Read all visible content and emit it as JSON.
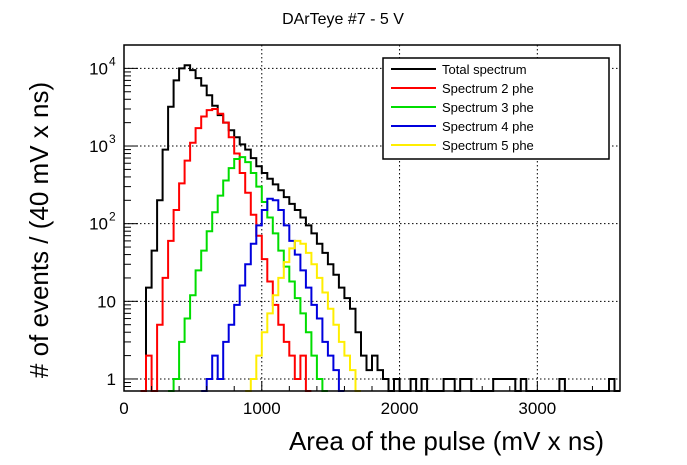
{
  "chart_data": {
    "type": "histogram",
    "title": "DArTeye #7 - 5 V",
    "xlabel": "Area of the pulse (mV x ns)",
    "ylabel": "# of events / (40 mV x ns)",
    "xlim": [
      0,
      3600
    ],
    "ylim": [
      0.7,
      20000
    ],
    "yscale": "log",
    "bin_width": 40,
    "grid": true,
    "x_ticks": [
      {
        "value": 0,
        "label": "0"
      },
      {
        "value": 1000,
        "label": "1000"
      },
      {
        "value": 2000,
        "label": "2000"
      },
      {
        "value": 3000,
        "label": "3000"
      }
    ],
    "y_ticks": [
      {
        "value": 1,
        "label": "1"
      },
      {
        "value": 10,
        "label": "10"
      },
      {
        "value": 100,
        "label": "10",
        "exp": "2"
      },
      {
        "value": 1000,
        "label": "10",
        "exp": "3"
      },
      {
        "value": 10000,
        "label": "10",
        "exp": "4"
      }
    ],
    "legend_position": "top-right",
    "series": [
      {
        "name": "Total spectrum",
        "color": "#000000",
        "bins": [
          [
            120,
            0.7
          ],
          [
            160,
            15
          ],
          [
            200,
            45
          ],
          [
            240,
            200
          ],
          [
            280,
            900
          ],
          [
            320,
            3200
          ],
          [
            360,
            7000
          ],
          [
            400,
            10000
          ],
          [
            440,
            11000
          ],
          [
            480,
            9500
          ],
          [
            520,
            7500
          ],
          [
            560,
            6000
          ],
          [
            600,
            4500
          ],
          [
            640,
            3300
          ],
          [
            680,
            2500
          ],
          [
            720,
            2000
          ],
          [
            760,
            1600
          ],
          [
            800,
            1300
          ],
          [
            840,
            1050
          ],
          [
            880,
            900
          ],
          [
            920,
            700
          ],
          [
            960,
            550
          ],
          [
            1000,
            450
          ],
          [
            1040,
            380
          ],
          [
            1080,
            320
          ],
          [
            1120,
            270
          ],
          [
            1160,
            220
          ],
          [
            1200,
            180
          ],
          [
            1240,
            150
          ],
          [
            1280,
            120
          ],
          [
            1320,
            95
          ],
          [
            1360,
            75
          ],
          [
            1400,
            55
          ],
          [
            1440,
            42
          ],
          [
            1480,
            30
          ],
          [
            1520,
            22
          ],
          [
            1560,
            15
          ],
          [
            1600,
            11
          ],
          [
            1640,
            8
          ],
          [
            1680,
            4
          ],
          [
            1720,
            2
          ],
          [
            1760,
            1.3
          ],
          [
            1800,
            2
          ],
          [
            1840,
            1.3
          ],
          [
            1880,
            1
          ],
          [
            1920,
            0.7
          ],
          [
            1960,
            1
          ],
          [
            2000,
            0.7
          ],
          [
            2040,
            0.7
          ],
          [
            2080,
            1
          ],
          [
            2120,
            0.7
          ],
          [
            2160,
            1
          ],
          [
            2200,
            0.7
          ],
          [
            2240,
            0.7
          ],
          [
            2280,
            0.7
          ],
          [
            2320,
            1
          ],
          [
            2360,
            1
          ],
          [
            2400,
            0.7
          ],
          [
            2440,
            1
          ],
          [
            2480,
            1
          ],
          [
            2520,
            0.7
          ],
          [
            2560,
            0.7
          ],
          [
            2600,
            0.7
          ],
          [
            2640,
            0.7
          ],
          [
            2680,
            1
          ],
          [
            2720,
            1
          ],
          [
            2760,
            1
          ],
          [
            2800,
            1
          ],
          [
            2840,
            0.7
          ],
          [
            2880,
            1
          ],
          [
            2920,
            0.7
          ],
          [
            2960,
            0.7
          ],
          [
            3000,
            0.7
          ],
          [
            3040,
            0.7
          ],
          [
            3080,
            0.7
          ],
          [
            3120,
            0.7
          ],
          [
            3160,
            1
          ],
          [
            3200,
            0.7
          ],
          [
            3240,
            0.7
          ],
          [
            3280,
            0.7
          ],
          [
            3320,
            0.7
          ],
          [
            3360,
            0.7
          ],
          [
            3400,
            0.7
          ],
          [
            3440,
            0.7
          ],
          [
            3480,
            0.7
          ],
          [
            3520,
            1
          ],
          [
            3560,
            0.7
          ]
        ]
      },
      {
        "name": "Spectrum 2 phe",
        "color": "#ff0000",
        "bins": [
          [
            120,
            0.7
          ],
          [
            160,
            2
          ],
          [
            200,
            0.7
          ],
          [
            240,
            5
          ],
          [
            280,
            20
          ],
          [
            320,
            60
          ],
          [
            360,
            150
          ],
          [
            400,
            330
          ],
          [
            440,
            650
          ],
          [
            480,
            1100
          ],
          [
            520,
            1700
          ],
          [
            560,
            2400
          ],
          [
            600,
            2900
          ],
          [
            640,
            3000
          ],
          [
            680,
            2600
          ],
          [
            720,
            2000
          ],
          [
            760,
            1300
          ],
          [
            800,
            800
          ],
          [
            840,
            450
          ],
          [
            880,
            250
          ],
          [
            920,
            130
          ],
          [
            960,
            70
          ],
          [
            1000,
            35
          ],
          [
            1040,
            18
          ],
          [
            1080,
            9
          ],
          [
            1120,
            5
          ],
          [
            1160,
            3
          ],
          [
            1200,
            2
          ],
          [
            1240,
            1
          ],
          [
            1280,
            2
          ],
          [
            1320,
            0.7
          ]
        ]
      },
      {
        "name": "Spectrum 3 phe",
        "color": "#00dd00",
        "bins": [
          [
            320,
            0.7
          ],
          [
            360,
            1
          ],
          [
            400,
            3
          ],
          [
            440,
            6
          ],
          [
            480,
            12
          ],
          [
            520,
            25
          ],
          [
            560,
            45
          ],
          [
            600,
            80
          ],
          [
            640,
            140
          ],
          [
            680,
            230
          ],
          [
            720,
            360
          ],
          [
            760,
            520
          ],
          [
            800,
            680
          ],
          [
            840,
            720
          ],
          [
            880,
            620
          ],
          [
            920,
            450
          ],
          [
            960,
            300
          ],
          [
            1000,
            190
          ],
          [
            1040,
            120
          ],
          [
            1080,
            75
          ],
          [
            1120,
            45
          ],
          [
            1160,
            28
          ],
          [
            1200,
            18
          ],
          [
            1240,
            11
          ],
          [
            1280,
            7
          ],
          [
            1320,
            4
          ],
          [
            1360,
            2
          ],
          [
            1400,
            1
          ],
          [
            1440,
            0.7
          ]
        ]
      },
      {
        "name": "Spectrum 4 phe",
        "color": "#0000dd",
        "bins": [
          [
            560,
            0.7
          ],
          [
            600,
            1
          ],
          [
            640,
            2
          ],
          [
            680,
            1
          ],
          [
            720,
            3
          ],
          [
            760,
            5
          ],
          [
            800,
            9
          ],
          [
            840,
            16
          ],
          [
            880,
            30
          ],
          [
            920,
            55
          ],
          [
            960,
            95
          ],
          [
            1000,
            150
          ],
          [
            1040,
            210
          ],
          [
            1080,
            200
          ],
          [
            1120,
            150
          ],
          [
            1160,
            95
          ],
          [
            1200,
            60
          ],
          [
            1240,
            40
          ],
          [
            1280,
            25
          ],
          [
            1320,
            15
          ],
          [
            1360,
            9
          ],
          [
            1400,
            6
          ],
          [
            1440,
            3
          ],
          [
            1480,
            2
          ],
          [
            1520,
            1.3
          ],
          [
            1560,
            0.7
          ]
        ]
      },
      {
        "name": "Spectrum 5 phe",
        "color": "#ffee00",
        "bins": [
          [
            880,
            0.7
          ],
          [
            920,
            1
          ],
          [
            960,
            2
          ],
          [
            1000,
            4
          ],
          [
            1040,
            7
          ],
          [
            1080,
            12
          ],
          [
            1120,
            20
          ],
          [
            1160,
            32
          ],
          [
            1200,
            48
          ],
          [
            1240,
            60
          ],
          [
            1280,
            55
          ],
          [
            1320,
            42
          ],
          [
            1360,
            30
          ],
          [
            1400,
            20
          ],
          [
            1440,
            13
          ],
          [
            1480,
            8
          ],
          [
            1520,
            5
          ],
          [
            1560,
            3
          ],
          [
            1600,
            2
          ],
          [
            1640,
            1.3
          ],
          [
            1680,
            0.7
          ]
        ]
      }
    ]
  }
}
